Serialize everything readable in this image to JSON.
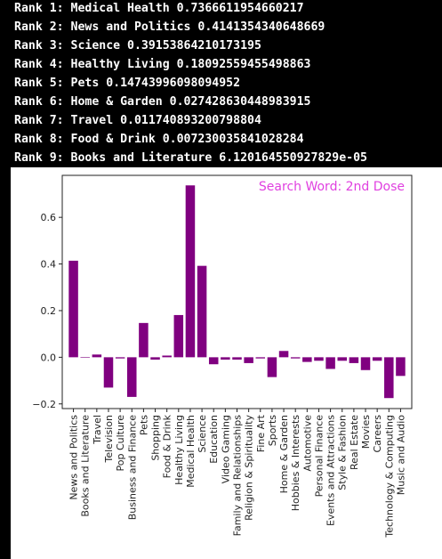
{
  "console": {
    "lines": [
      "Rank 1: Medical Health 0.7366611954660217",
      "Rank 2: News and Politics 0.4141354340648669",
      "Rank 3: Science 0.39153864210173195",
      "Rank 4: Healthy Living 0.18092559455498863",
      "Rank 5: Pets 0.14743996098094952",
      "Rank 6: Home & Garden 0.027428630448983915",
      "Rank 7: Travel 0.011740893200798804",
      "Rank 8: Food & Drink 0.007230035841028284",
      "Rank 9: Books and Literature 6.120164550927829e-05"
    ]
  },
  "chart_data": {
    "type": "bar",
    "categories": [
      "News and Politics",
      "Books and Literature",
      "Travel",
      "Television",
      "Pop Culture",
      "Business and Finance",
      "Pets",
      "Shopping",
      "Food & Drink",
      "Healthy Living",
      "Medical Health",
      "Science",
      "Education",
      "Video Gaming",
      "Family and Relationships",
      "Religion & Spirituality",
      "Fine Art",
      "Sports",
      "Home & Garden",
      "Hobbies & Interests",
      "Automotive",
      "Personal Finance",
      "Events and Attractions",
      "Style & Fashion",
      "Real Estate",
      "Movies",
      "Careers",
      "Technology & Computing",
      "Music and Audio"
    ],
    "values": [
      0.414,
      6e-05,
      0.0117,
      -0.13,
      -0.005,
      -0.17,
      0.147,
      -0.01,
      0.0072,
      0.181,
      0.737,
      0.392,
      -0.03,
      -0.01,
      -0.01,
      -0.025,
      -0.005,
      -0.085,
      0.027,
      -0.005,
      -0.02,
      -0.015,
      -0.05,
      -0.015,
      -0.025,
      -0.055,
      -0.015,
      -0.175,
      -0.08
    ],
    "bar_color": "#800080",
    "annotation": "Search Word: 2nd Dose",
    "annotation_color": "#e040e0",
    "yticks": [
      -0.2,
      0.0,
      0.2,
      0.4,
      0.6
    ],
    "ytick_labels": [
      "−0.2",
      "0.0",
      "0.2",
      "0.4",
      "0.6"
    ],
    "ylim": [
      -0.22,
      0.78
    ],
    "title": "",
    "xlabel": "",
    "ylabel": ""
  }
}
